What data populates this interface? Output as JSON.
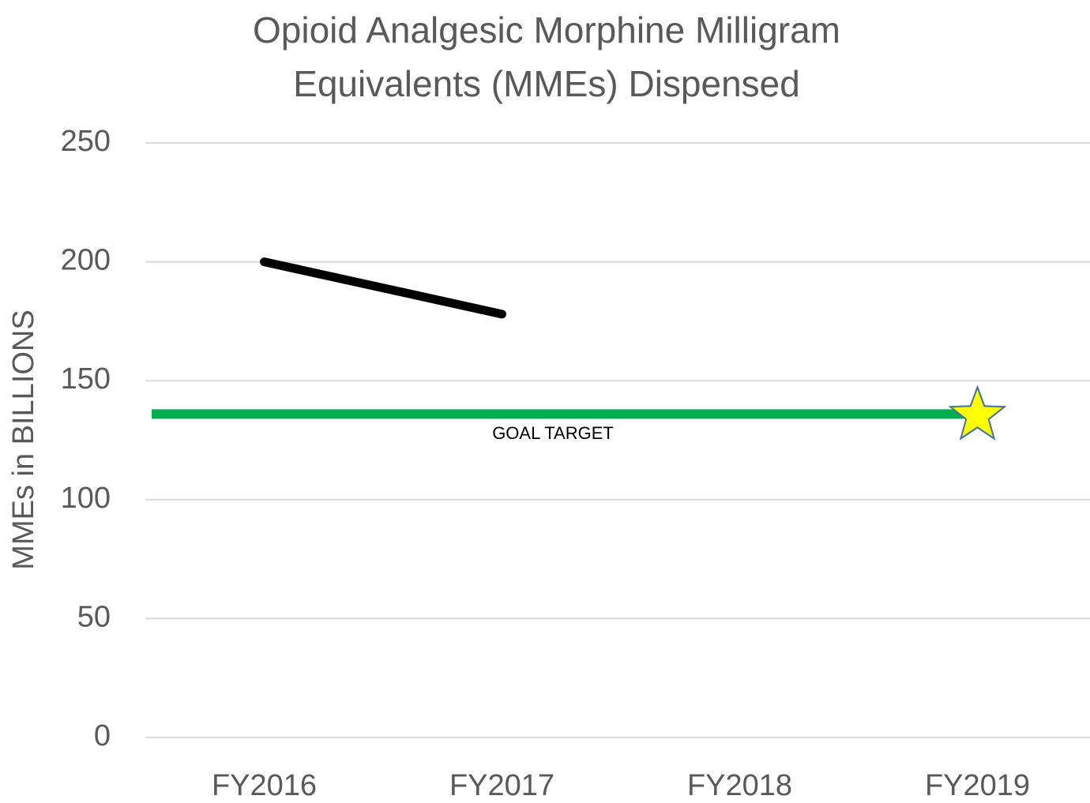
{
  "chart_data": {
    "type": "line",
    "title": "Opioid Analgesic Morphine Milligram Equivalents (MMEs) Dispensed",
    "y_label": "MMEs in BILLIONS",
    "categories": [
      "FY2016",
      "FY2017",
      "FY2018",
      "FY2019"
    ],
    "series": [
      {
        "color": "#000000",
        "values": [
          200,
          178,
          null,
          null
        ]
      }
    ],
    "goal": {
      "label": "GOAL TARGET",
      "value": 136,
      "color": "#00b050",
      "marker_color": "#ffff00",
      "marker_edge": "#41719c"
    },
    "ylim": [
      0,
      250
    ],
    "yticks": [
      0,
      50,
      100,
      150,
      200,
      250
    ],
    "grid": true
  }
}
